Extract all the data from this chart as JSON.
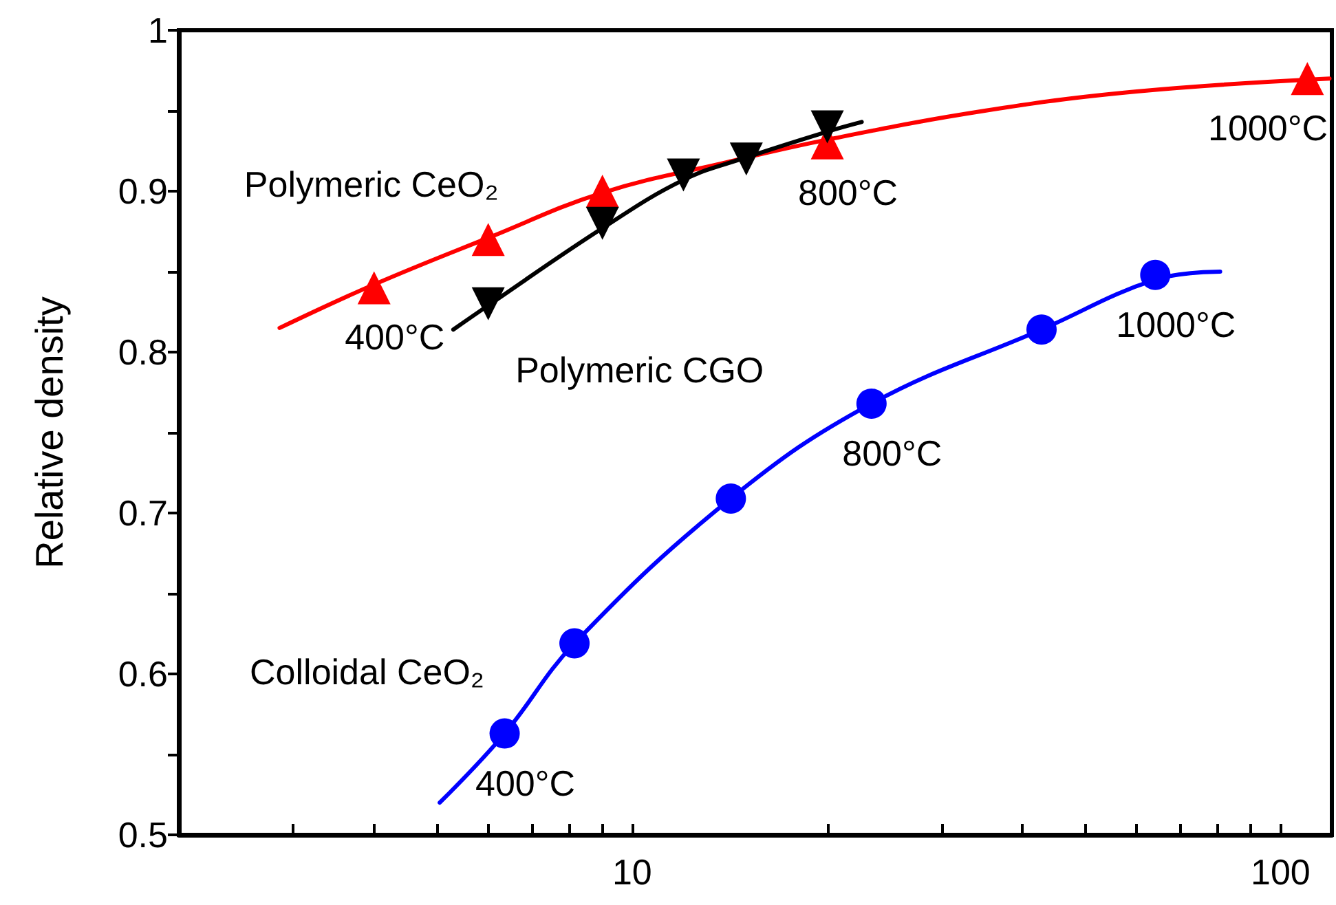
{
  "chart_data": {
    "type": "scatter",
    "ylabel": "Relative density",
    "log": "x",
    "xlim": [
      2,
      120
    ],
    "ylim": [
      0.5,
      1.0
    ],
    "xticks": [
      {
        "value": 2,
        "label": null
      },
      {
        "value": 3,
        "label": null
      },
      {
        "value": 4,
        "label": null
      },
      {
        "value": 5,
        "label": null
      },
      {
        "value": 6,
        "label": null
      },
      {
        "value": 7,
        "label": null
      },
      {
        "value": 8,
        "label": null
      },
      {
        "value": 9,
        "label": null
      },
      10,
      {
        "value": 20,
        "label": null
      },
      {
        "value": 30,
        "label": null
      },
      {
        "value": 40,
        "label": null
      },
      {
        "value": 50,
        "label": null
      },
      {
        "value": 60,
        "label": null
      },
      {
        "value": 70,
        "label": null
      },
      {
        "value": 80,
        "label": null
      },
      {
        "value": 90,
        "label": null
      },
      100
    ],
    "yticks": [
      0.5,
      {
        "value": 0.55,
        "label": null
      },
      0.6,
      {
        "value": 0.65,
        "label": null
      },
      0.7,
      {
        "value": 0.75,
        "label": null
      },
      0.8,
      {
        "value": 0.85,
        "label": null
      },
      0.9,
      {
        "value": 0.95,
        "label": null
      },
      1.0
    ],
    "grid": false,
    "legend": false,
    "series": [
      {
        "type": "line",
        "color": "#ff0000",
        "marker": "none",
        "x": [
          2.86,
          4,
          6,
          9,
          14,
          20,
          35,
          60,
          119
        ],
        "values": [
          0.815,
          0.842,
          0.871,
          0.899,
          0.918,
          0.932,
          0.95,
          0.962,
          0.97
        ]
      },
      {
        "type": "line",
        "color": "#000000",
        "marker": "none",
        "x": [
          5.3,
          6,
          9,
          12,
          15,
          20,
          22.6
        ],
        "values": [
          0.814,
          0.829,
          0.877,
          0.907,
          0.921,
          0.937,
          0.943
        ]
      },
      {
        "type": "line",
        "color": "#0000ff",
        "marker": "none",
        "x": [
          5.05,
          6.36,
          8.15,
          14.2,
          23.4,
          42.8,
          64.1,
          80.7
        ],
        "values": [
          0.52,
          0.563,
          0.619,
          0.709,
          0.768,
          0.814,
          0.845,
          0.85
        ]
      },
      {
        "name": "Polymeric CeO₂",
        "color": "#ff0000",
        "marker": "triangle",
        "x": [
          4,
          6,
          9,
          20,
          110
        ],
        "values": [
          0.84,
          0.87,
          0.9,
          0.93,
          0.97
        ]
      },
      {
        "name": "Polymeric CGO",
        "color": "#000000",
        "marker": "triangle_down",
        "x": [
          6,
          9,
          12,
          15,
          20
        ],
        "values": [
          0.83,
          0.88,
          0.91,
          0.92,
          0.94
        ]
      },
      {
        "name": "Colloidal CeO₂",
        "color": "#0000ff",
        "marker": "circle",
        "x": [
          6.36,
          8.15,
          14.2,
          23.4,
          42.8,
          64.1
        ],
        "values": [
          0.563,
          0.619,
          0.709,
          0.768,
          0.814,
          0.848
        ]
      }
    ],
    "annotations": [
      {
        "text": "400°C",
        "x": 4,
        "y": 0.84
      },
      {
        "text": "800°C",
        "x": 20,
        "y": 0.93
      },
      {
        "text": "1000°C",
        "x": 110,
        "y": 0.97
      },
      {
        "text": "400°C",
        "x": 6.36,
        "y": 0.563
      },
      {
        "text": "800°C",
        "x": 23.4,
        "y": 0.768
      },
      {
        "text": "1000°C",
        "x": 64.1,
        "y": 0.848
      }
    ]
  }
}
